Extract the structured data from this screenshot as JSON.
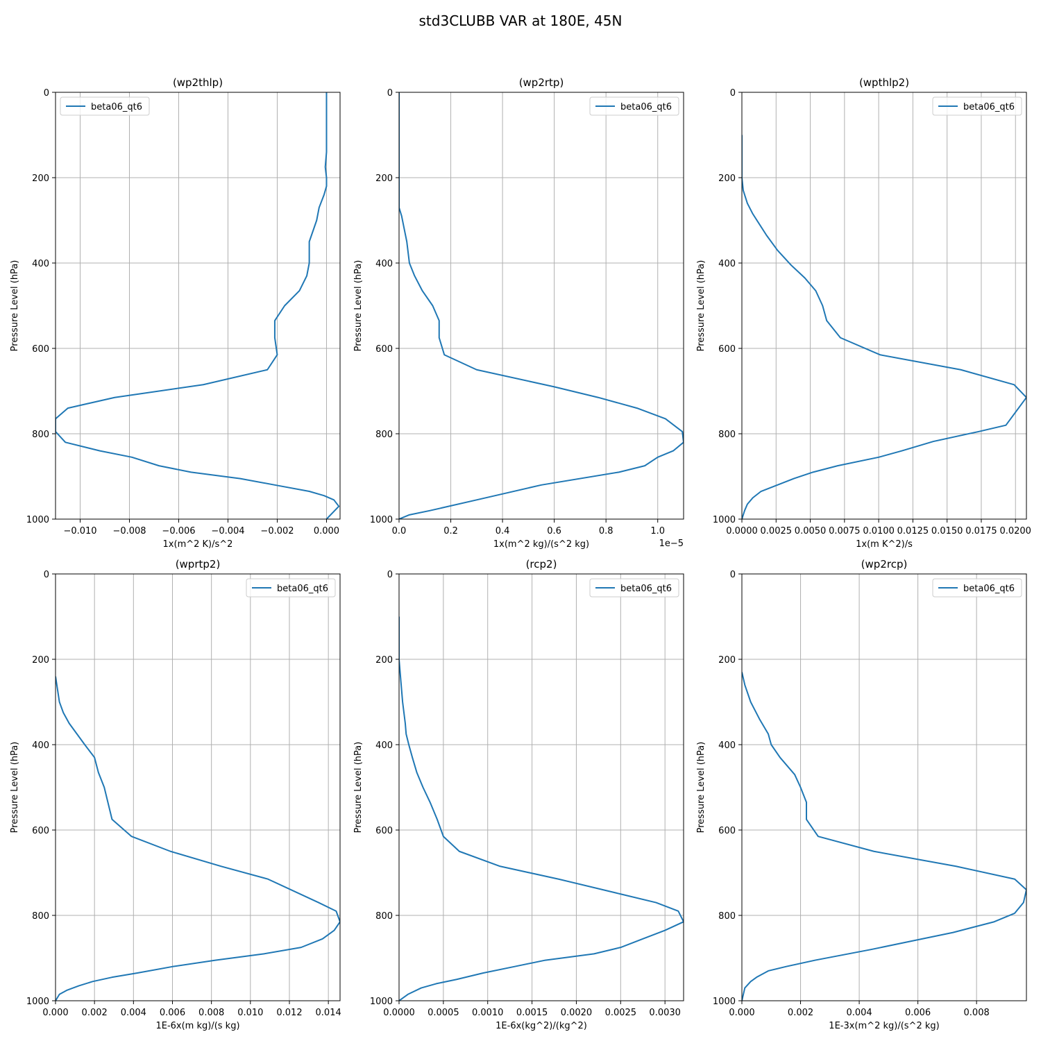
{
  "figure": {
    "title": "std3CLUBB VAR at 180E, 45N"
  },
  "colors": {
    "series": "#1f77b4",
    "grid": "#b0b0b0",
    "axes": "#000000",
    "legend_border": "#cccccc"
  },
  "chart_data": [
    {
      "type": "line",
      "title": "(wp2thlp)",
      "xlabel": "1x(m^2 K)/s^2",
      "ylabel": "Pressure Level (hPa)",
      "xlim": [
        -0.011,
        0.00055
      ],
      "ylim": [
        1000,
        0
      ],
      "xticks": [
        -0.01,
        -0.008,
        -0.006,
        -0.004,
        -0.002,
        0.0
      ],
      "xtick_labels": [
        "−0.010",
        "−0.008",
        "−0.006",
        "−0.004",
        "−0.002",
        "0.000"
      ],
      "yticks": [
        0,
        200,
        400,
        600,
        800,
        1000
      ],
      "ytick_labels": [
        "0",
        "200",
        "400",
        "600",
        "800",
        "1000"
      ],
      "offset_text": "",
      "grid": true,
      "legend_position": "upper-left",
      "series": [
        {
          "name": "beta06_qt6",
          "x": [
            0.0,
            0.0,
            0.0,
            0.0,
            -5e-05,
            0.0,
            0.0,
            -0.0001,
            -0.0003,
            -0.0004,
            -0.0007,
            -0.0007,
            -0.0008,
            -0.0011,
            -0.0017,
            -0.0021,
            -0.0021,
            -0.002,
            -0.0024,
            -0.005,
            -0.0086,
            -0.0105,
            -0.011,
            -0.011,
            -0.0106,
            -0.0092,
            -0.0079,
            -0.0068,
            -0.0055,
            -0.0035,
            -0.0021,
            -0.0007,
            -0.0001,
            0.0003,
            0.0005,
            0.0
          ],
          "y": [
            0,
            50,
            100,
            140,
            175,
            200,
            220,
            240,
            270,
            300,
            350,
            400,
            430,
            465,
            500,
            535,
            575,
            615,
            650,
            685,
            715,
            740,
            765,
            795,
            820,
            840,
            855,
            875,
            890,
            905,
            920,
            935,
            945,
            955,
            970,
            1000
          ]
        }
      ]
    },
    {
      "type": "line",
      "title": "(wp2rtp)",
      "xlabel": "1x(m^2 kg)/(s^2 kg)",
      "ylabel": "Pressure Level (hPa)",
      "xlim": [
        0,
        1.1
      ],
      "ylim": [
        1000,
        0
      ],
      "xticks": [
        0.0,
        0.2,
        0.4,
        0.6,
        0.8,
        1.0
      ],
      "xtick_labels": [
        "0.0",
        "0.2",
        "0.4",
        "0.6",
        "0.8",
        "1.0"
      ],
      "yticks": [
        0,
        200,
        400,
        600,
        800,
        1000
      ],
      "ytick_labels": [
        "0",
        "200",
        "400",
        "600",
        "800",
        "1000"
      ],
      "offset_text": "1e−5",
      "grid": true,
      "legend_position": "upper-right",
      "series": [
        {
          "name": "beta06_qt6",
          "x": [
            0.0,
            0.0,
            0.0,
            0.0,
            0.0,
            0.01,
            0.02,
            0.03,
            0.04,
            0.06,
            0.09,
            0.13,
            0.155,
            0.155,
            0.175,
            0.3,
            0.6,
            0.77,
            0.92,
            1.03,
            1.095,
            1.1,
            1.06,
            1.0,
            0.95,
            0.85,
            0.55,
            0.3,
            0.12,
            0.04,
            0.0
          ],
          "y": [
            0,
            100,
            200,
            250,
            270,
            290,
            320,
            350,
            400,
            430,
            465,
            500,
            535,
            575,
            615,
            650,
            690,
            715,
            740,
            765,
            795,
            820,
            840,
            855,
            875,
            890,
            920,
            955,
            980,
            990,
            1000
          ]
        }
      ]
    },
    {
      "type": "line",
      "title": "(wpthlp2)",
      "xlabel": "1x(m K^2)/s",
      "ylabel": "Pressure Level (hPa)",
      "xlim": [
        0,
        0.0208
      ],
      "ylim": [
        1000,
        0
      ],
      "xticks": [
        0.0,
        0.0025,
        0.005,
        0.0075,
        0.01,
        0.0125,
        0.015,
        0.0175,
        0.02
      ],
      "xtick_labels": [
        "0.0000",
        "0.0025",
        "0.0050",
        "0.0075",
        "0.0100",
        "0.0125",
        "0.0150",
        "0.0175",
        "0.0200"
      ],
      "yticks": [
        0,
        200,
        400,
        600,
        800,
        1000
      ],
      "ytick_labels": [
        "0",
        "200",
        "400",
        "600",
        "800",
        "1000"
      ],
      "offset_text": "",
      "grid": true,
      "legend_position": "upper-right",
      "series": [
        {
          "name": "beta06_qt6",
          "x": [
            0.0,
            0.0,
            0.0001,
            0.0004,
            0.0008,
            0.0012,
            0.0018,
            0.0026,
            0.0036,
            0.0046,
            0.0054,
            0.0059,
            0.0062,
            0.0072,
            0.0101,
            0.016,
            0.0199,
            0.0208,
            0.0193,
            0.0173,
            0.014,
            0.0117,
            0.01,
            0.007,
            0.0052,
            0.0038,
            0.0026,
            0.0014,
            0.0008,
            0.0004,
            0.0002,
            0.0
          ],
          "y": [
            100,
            200,
            230,
            260,
            285,
            305,
            335,
            370,
            405,
            435,
            465,
            500,
            535,
            575,
            615,
            650,
            685,
            715,
            780,
            795,
            818,
            840,
            855,
            875,
            890,
            905,
            920,
            935,
            950,
            965,
            980,
            1000
          ]
        }
      ]
    },
    {
      "type": "line",
      "title": "(wprtp2)",
      "xlabel": "1E-6x(m kg)/(s kg)",
      "ylabel": "Pressure Level (hPa)",
      "xlim": [
        0,
        0.0146
      ],
      "ylim": [
        1000,
        0
      ],
      "xticks": [
        0.0,
        0.002,
        0.004,
        0.006,
        0.008,
        0.01,
        0.012,
        0.014
      ],
      "xtick_labels": [
        "0.000",
        "0.002",
        "0.004",
        "0.006",
        "0.008",
        "0.010",
        "0.012",
        "0.014"
      ],
      "yticks": [
        0,
        200,
        400,
        600,
        800,
        1000
      ],
      "ytick_labels": [
        "0",
        "200",
        "400",
        "600",
        "800",
        "1000"
      ],
      "offset_text": "",
      "grid": true,
      "legend_position": "upper-right",
      "series": [
        {
          "name": "beta06_qt6",
          "x": [
            0.0,
            0.0001,
            0.0002,
            0.0004,
            0.0007,
            0.0011,
            0.0015,
            0.002,
            0.0022,
            0.0025,
            0.0029,
            0.0039,
            0.0059,
            0.0085,
            0.0109,
            0.0135,
            0.0144,
            0.0146,
            0.0143,
            0.0137,
            0.0126,
            0.0107,
            0.0082,
            0.006,
            0.0042,
            0.0029,
            0.0019,
            0.0012,
            0.0006,
            0.0002,
            0.0
          ],
          "y": [
            240,
            270,
            300,
            325,
            350,
            375,
            400,
            430,
            465,
            500,
            575,
            615,
            650,
            685,
            715,
            770,
            790,
            815,
            835,
            855,
            875,
            890,
            905,
            920,
            935,
            945,
            955,
            965,
            975,
            985,
            1000
          ]
        }
      ]
    },
    {
      "type": "line",
      "title": "(rcp2)",
      "xlabel": "1E-6x(kg^2)/(kg^2)",
      "ylabel": "Pressure Level (hPa)",
      "xlim": [
        0,
        0.00321
      ],
      "ylim": [
        1000,
        0
      ],
      "xticks": [
        0.0,
        0.0005,
        0.001,
        0.0015,
        0.002,
        0.0025,
        0.003
      ],
      "xtick_labels": [
        "0.0000",
        "0.0005",
        "0.0010",
        "0.0015",
        "0.0020",
        "0.0025",
        "0.0030"
      ],
      "yticks": [
        0,
        200,
        400,
        600,
        800,
        1000
      ],
      "ytick_labels": [
        "0",
        "200",
        "400",
        "600",
        "800",
        "1000"
      ],
      "offset_text": "",
      "grid": true,
      "legend_position": "upper-right",
      "series": [
        {
          "name": "beta06_qt6",
          "x": [
            0.0,
            0.0,
            2e-05,
            4e-05,
            7e-05,
            8e-05,
            0.00011,
            0.00015,
            0.0002,
            0.00027,
            0.00035,
            0.00043,
            0.0005,
            0.00068,
            0.00114,
            0.0018,
            0.0025,
            0.0029,
            0.00315,
            0.00321,
            0.003,
            0.00275,
            0.0025,
            0.0022,
            0.00165,
            0.0013,
            0.00095,
            0.00065,
            0.00042,
            0.00025,
            0.0001,
            0.0
          ],
          "y": [
            100,
            200,
            250,
            300,
            350,
            375,
            400,
            430,
            465,
            500,
            535,
            575,
            615,
            650,
            685,
            715,
            750,
            770,
            790,
            815,
            835,
            855,
            875,
            890,
            905,
            920,
            935,
            950,
            960,
            970,
            985,
            1000
          ]
        }
      ]
    },
    {
      "type": "line",
      "title": "(wp2rcp)",
      "xlabel": "1E-3x(m^2 kg)/(s^2 kg)",
      "ylabel": "Pressure Level (hPa)",
      "xlim": [
        0,
        0.0097
      ],
      "ylim": [
        1000,
        0
      ],
      "xticks": [
        0.0,
        0.002,
        0.004,
        0.006,
        0.008
      ],
      "xtick_labels": [
        "0.000",
        "0.002",
        "0.004",
        "0.006",
        "0.008"
      ],
      "yticks": [
        0,
        200,
        400,
        600,
        800,
        1000
      ],
      "ytick_labels": [
        "0",
        "200",
        "400",
        "600",
        "800",
        "1000"
      ],
      "offset_text": "",
      "grid": true,
      "legend_position": "upper-right",
      "series": [
        {
          "name": "beta06_qt6",
          "x": [
            0.0,
            0.0001,
            0.0003,
            0.0006,
            0.0009,
            0.001,
            0.0013,
            0.0018,
            0.002,
            0.0022,
            0.0022,
            0.0026,
            0.0045,
            0.0073,
            0.0093,
            0.0097,
            0.0096,
            0.0093,
            0.0086,
            0.0072,
            0.0058,
            0.0044,
            0.0025,
            0.0015,
            0.0009,
            0.0005,
            0.0003,
            0.0001,
            0.0
          ],
          "y": [
            230,
            260,
            300,
            340,
            375,
            400,
            430,
            470,
            500,
            535,
            575,
            615,
            650,
            685,
            715,
            740,
            770,
            795,
            815,
            840,
            860,
            880,
            905,
            920,
            930,
            945,
            955,
            970,
            1000
          ]
        }
      ]
    }
  ]
}
